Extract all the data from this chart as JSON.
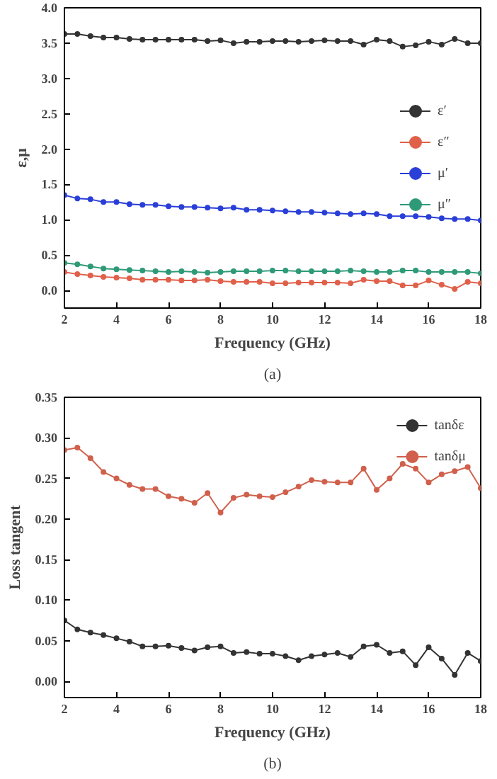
{
  "chart_data": [
    {
      "type": "line",
      "xlabel": "Frequency (GHz)",
      "ylabel": "ε,μ",
      "annotations": [
        "(a)"
      ],
      "x": [
        2,
        2.5,
        3,
        3.5,
        4,
        4.5,
        5,
        5.5,
        6,
        6.5,
        7,
        7.5,
        8,
        8.5,
        9,
        9.5,
        10,
        10.5,
        11,
        11.5,
        12,
        12.5,
        13,
        13.5,
        14,
        14.5,
        15,
        15.5,
        16,
        16.5,
        17,
        17.5,
        18
      ],
      "series": [
        {
          "name": "ε′",
          "color": "#333333",
          "values": [
            3.63,
            3.63,
            3.6,
            3.58,
            3.58,
            3.56,
            3.55,
            3.55,
            3.55,
            3.55,
            3.55,
            3.53,
            3.54,
            3.5,
            3.52,
            3.52,
            3.53,
            3.53,
            3.52,
            3.53,
            3.54,
            3.53,
            3.53,
            3.48,
            3.55,
            3.53,
            3.45,
            3.47,
            3.52,
            3.48,
            3.56,
            3.5,
            3.5
          ]
        },
        {
          "name": "ε″",
          "color": "#e0604a",
          "values": [
            0.26,
            0.23,
            0.21,
            0.19,
            0.18,
            0.17,
            0.15,
            0.15,
            0.15,
            0.14,
            0.14,
            0.15,
            0.13,
            0.12,
            0.12,
            0.12,
            0.1,
            0.1,
            0.11,
            0.11,
            0.11,
            0.11,
            0.1,
            0.15,
            0.13,
            0.13,
            0.07,
            0.07,
            0.14,
            0.08,
            0.02,
            0.12,
            0.1
          ]
        },
        {
          "name": "μ′",
          "color": "#2a3fd8",
          "values": [
            1.35,
            1.3,
            1.29,
            1.25,
            1.25,
            1.22,
            1.21,
            1.21,
            1.19,
            1.18,
            1.18,
            1.17,
            1.16,
            1.17,
            1.14,
            1.14,
            1.13,
            1.12,
            1.11,
            1.11,
            1.1,
            1.09,
            1.08,
            1.09,
            1.08,
            1.05,
            1.05,
            1.05,
            1.04,
            1.02,
            1.01,
            1.01,
            0.99
          ]
        },
        {
          "name": "μ″",
          "color": "#2f9a78",
          "values": [
            0.39,
            0.37,
            0.34,
            0.31,
            0.3,
            0.29,
            0.28,
            0.27,
            0.26,
            0.27,
            0.26,
            0.25,
            0.26,
            0.27,
            0.27,
            0.27,
            0.28,
            0.28,
            0.27,
            0.27,
            0.27,
            0.27,
            0.28,
            0.27,
            0.26,
            0.26,
            0.28,
            0.28,
            0.26,
            0.26,
            0.26,
            0.26,
            0.24
          ]
        }
      ],
      "xlim": [
        2,
        18
      ],
      "xticks": [
        2,
        4,
        6,
        8,
        10,
        12,
        14,
        16,
        18
      ],
      "ylim": [
        -0.25,
        4.0
      ],
      "yticks": [
        {
          "value": 0,
          "label": "0.0"
        },
        0.5,
        {
          "value": 1,
          "label": "1.0"
        },
        1.5,
        {
          "value": 2,
          "label": "2.0"
        },
        2.5,
        {
          "value": 3,
          "label": "3.0"
        },
        3.5,
        {
          "value": 4,
          "label": "4.0"
        }
      ],
      "grid": false,
      "legend": "right",
      "marker": "circle",
      "line_style": "solid"
    },
    {
      "type": "line",
      "xlabel": "Frequency (GHz)",
      "ylabel": "Loss tangent",
      "annotations": [
        "(b)"
      ],
      "x": [
        2,
        2.5,
        3,
        3.5,
        4,
        4.5,
        5,
        5.5,
        6,
        6.5,
        7,
        7.5,
        8,
        8.5,
        9,
        9.5,
        10,
        10.5,
        11,
        11.5,
        12,
        12.5,
        13,
        13.5,
        14,
        14.5,
        15,
        15.5,
        16,
        16.5,
        17,
        17.5,
        18
      ],
      "series": [
        {
          "name": "tanδε",
          "color": "#333333",
          "values": [
            0.075,
            0.064,
            0.06,
            0.057,
            0.053,
            0.049,
            0.043,
            0.043,
            0.044,
            0.041,
            0.038,
            0.042,
            0.043,
            0.035,
            0.036,
            0.034,
            0.034,
            0.031,
            0.026,
            0.031,
            0.033,
            0.035,
            0.03,
            0.043,
            0.045,
            0.035,
            0.037,
            0.02,
            0.042,
            0.028,
            0.008,
            0.035,
            0.025
          ]
        },
        {
          "name": "tanδμ",
          "color": "#d0604c",
          "values": [
            0.285,
            0.288,
            0.275,
            0.258,
            0.25,
            0.242,
            0.237,
            0.237,
            0.228,
            0.225,
            0.22,
            0.232,
            0.208,
            0.226,
            0.23,
            0.228,
            0.227,
            0.233,
            0.24,
            0.248,
            0.246,
            0.245,
            0.245,
            0.262,
            0.236,
            0.25,
            0.268,
            0.262,
            0.245,
            0.255,
            0.259,
            0.264,
            0.238
          ]
        }
      ],
      "xlim": [
        2,
        18
      ],
      "xticks": [
        2,
        4,
        6,
        8,
        10,
        12,
        14,
        16,
        18
      ],
      "ylim": [
        -0.02,
        0.35
      ],
      "yticks": [
        {
          "value": 0,
          "label": "0.00"
        },
        0.05,
        {
          "value": 0.1,
          "label": "0.10"
        },
        0.15,
        {
          "value": 0.2,
          "label": "0.20"
        },
        0.25,
        {
          "value": 0.3,
          "label": "0.30"
        },
        0.35
      ],
      "grid": false,
      "legend": "top right",
      "marker": "circle",
      "line_style": "solid"
    }
  ]
}
